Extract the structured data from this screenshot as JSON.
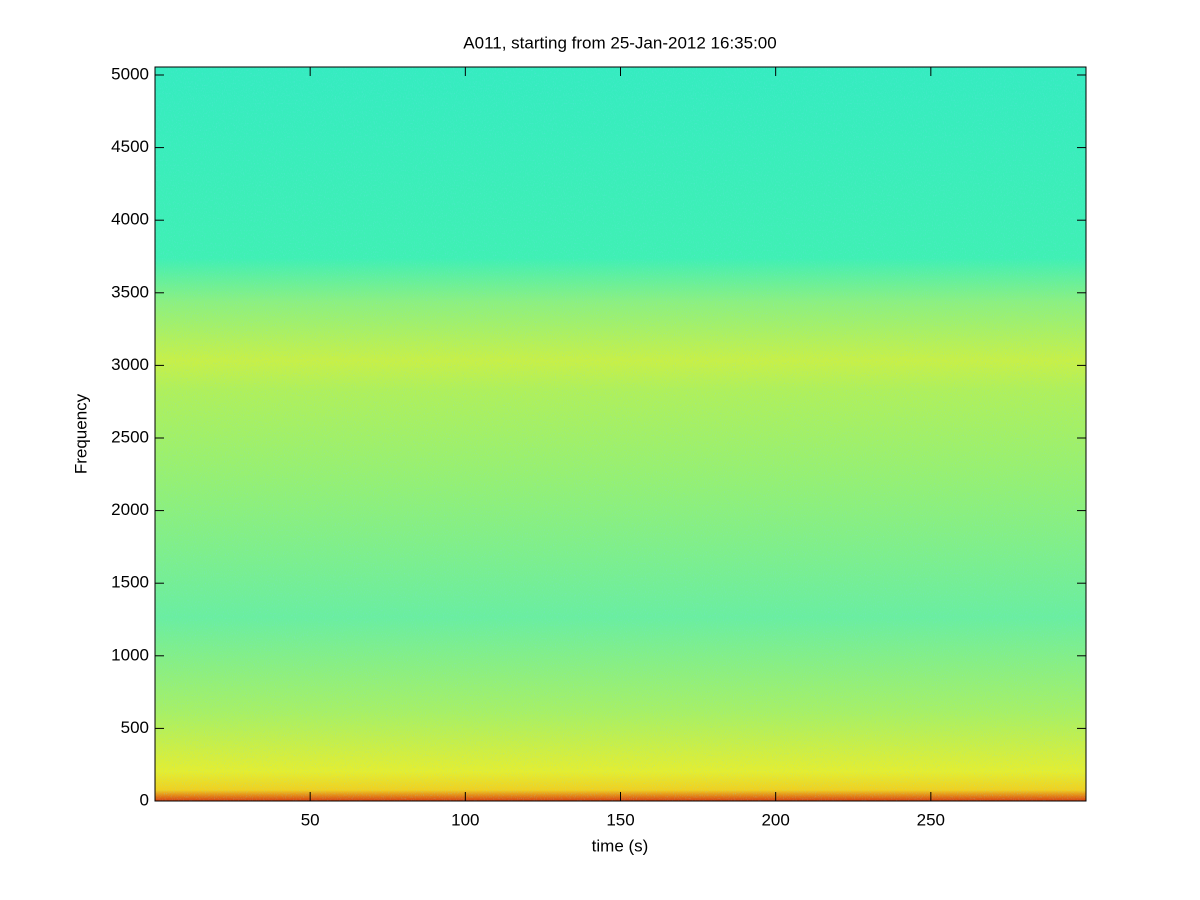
{
  "chart_data": {
    "type": "spectrogram",
    "title": "A011, starting from 25-Jan-2012 16:35:00",
    "x_label": "time (s)",
    "y_label": "Frequency",
    "xlim": [
      0,
      300
    ],
    "xticks": [
      50,
      100,
      150,
      200,
      250
    ],
    "ylim": [
      0,
      5055
    ],
    "yticks": [
      0,
      500,
      1000,
      1500,
      2000,
      2500,
      3000,
      3500,
      4000,
      4500,
      5000
    ]
  }
}
